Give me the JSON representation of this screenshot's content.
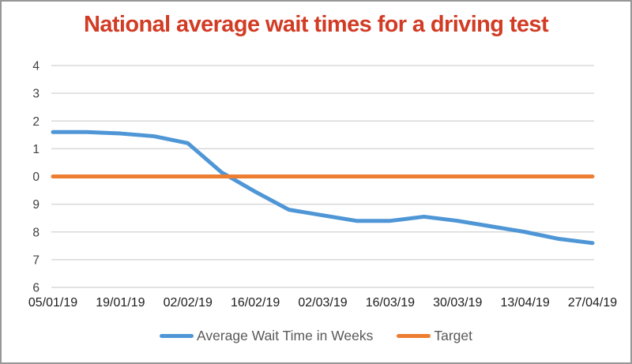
{
  "window": {
    "background": "#ffffff",
    "border_color": "#979797"
  },
  "chart_data": {
    "type": "line",
    "title": "National average wait times for a driving test",
    "title_color": "#d23b24",
    "x_tick_labels": [
      "05/01/19",
      "19/01/19",
      "02/02/19",
      "16/02/19",
      "02/03/19",
      "16/03/19",
      "30/03/19",
      "13/04/19",
      "27/04/19"
    ],
    "points_per_label_interval": 2,
    "y_axis": {
      "tick_labels_top_to_bottom": [
        "4",
        "3",
        "2",
        "1",
        "0",
        "9",
        "8",
        "7",
        "6"
      ],
      "tick_values_weeks": [
        14,
        13,
        12,
        11,
        10,
        9,
        8,
        7,
        6
      ],
      "displayed_as_shown": "labels appear without tens digit, reading 4,3,2,1,0,9,8,7,6"
    },
    "ylim_weeks": [
      6,
      14
    ],
    "grid": true,
    "gridline_color": "#d9d9d9",
    "axis_label_color": "#404040",
    "x_label_color": "#1d1d1d",
    "legend_position": "bottom",
    "legend_text_color": "#595959",
    "series": [
      {
        "name": "Average Wait Time in Weeks",
        "color": "#4f96d6",
        "values_weeks": [
          11.6,
          11.6,
          11.55,
          11.45,
          11.2,
          10.15,
          9.45,
          8.8,
          8.6,
          8.4,
          8.4,
          8.55,
          8.4,
          8.2,
          8.0,
          7.75,
          7.6
        ]
      },
      {
        "name": "Target",
        "color": "#ed7d31",
        "constant_value_weeks": 10
      }
    ]
  }
}
